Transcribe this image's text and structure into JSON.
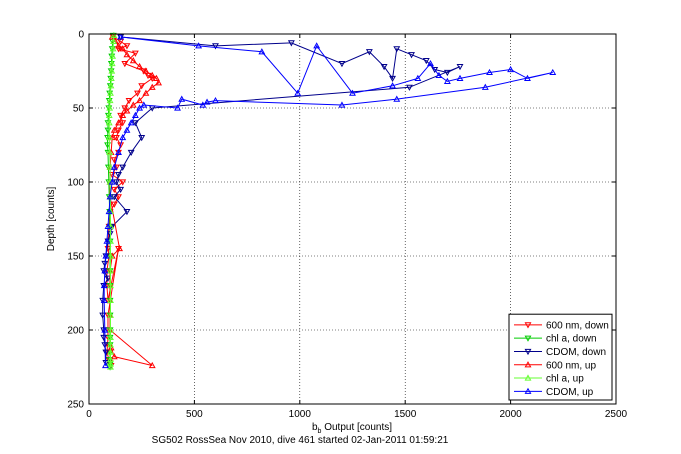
{
  "chart_data": {
    "type": "line",
    "xlabel": "b",
    "xlabel_sub": "b",
    "xlabel_rest": " Output [counts]",
    "ylabel": "Depth [counts]",
    "caption": "SG502 RossSea Nov 2010, dive 461 started 02-Jan-2011 01:59:21",
    "xlim": [
      0,
      2500
    ],
    "ylim": [
      0,
      250
    ],
    "y_reversed": true,
    "grid": true,
    "legend_position": "bottom-right",
    "x_ticks": [
      "0",
      "500",
      "1000",
      "1500",
      "2000",
      "2500"
    ],
    "y_ticks": [
      "0",
      "50",
      "100",
      "150",
      "200",
      "250"
    ],
    "series": [
      {
        "name": "600 nm, down",
        "color": "#ff0000",
        "marker": "triangle-down",
        "x": [
          115,
          150,
          180,
          140,
          220,
          170,
          260,
          280,
          300,
          250,
          230,
          190,
          170,
          150,
          160,
          140,
          130,
          150,
          140,
          120,
          130,
          110,
          160,
          120,
          140,
          120,
          100,
          95,
          90,
          90,
          95,
          85,
          85,
          90,
          140,
          90,
          90,
          90,
          88,
          85,
          95,
          100,
          105
        ],
        "y": [
          2,
          5,
          8,
          10,
          13,
          20,
          25,
          28,
          30,
          35,
          40,
          45,
          50,
          55,
          60,
          65,
          70,
          75,
          80,
          85,
          90,
          95,
          100,
          105,
          110,
          115,
          120,
          130,
          140,
          145,
          150,
          160,
          170,
          180,
          145,
          190,
          200,
          205,
          210,
          215,
          220,
          222,
          224
        ]
      },
      {
        "name": "chl a, down",
        "color": "#00cc00",
        "marker": "triangle-down",
        "x": [
          115,
          112,
          110,
          108,
          106,
          105,
          103,
          101,
          98,
          96,
          94,
          92,
          90,
          90,
          88,
          88,
          90,
          92,
          94,
          96,
          98,
          100,
          100,
          100,
          100,
          100,
          100,
          100,
          100,
          100,
          100,
          100,
          100,
          100,
          100
        ],
        "y": [
          1,
          5,
          10,
          15,
          20,
          25,
          30,
          35,
          40,
          45,
          50,
          55,
          60,
          65,
          70,
          75,
          80,
          90,
          100,
          110,
          120,
          130,
          140,
          150,
          160,
          170,
          180,
          190,
          200,
          205,
          210,
          215,
          220,
          223,
          225
        ]
      },
      {
        "name": "CDOM, down",
        "color": "#00008b",
        "marker": "triangle-down",
        "x": [
          150,
          600,
          960,
          1200,
          1330,
          1400,
          1440,
          1460,
          1530,
          1600,
          1640,
          1700,
          1760,
          1520,
          300,
          220,
          250,
          200,
          160,
          140,
          130,
          150,
          120,
          180,
          110,
          100,
          90,
          80,
          75,
          70,
          90,
          70,
          65,
          65,
          70,
          70,
          75,
          80,
          80
        ],
        "y": [
          2,
          8,
          6,
          20,
          12,
          22,
          30,
          10,
          14,
          18,
          24,
          26,
          22,
          36,
          50,
          60,
          70,
          80,
          90,
          95,
          100,
          105,
          110,
          120,
          130,
          135,
          140,
          150,
          155,
          160,
          165,
          170,
          180,
          190,
          200,
          205,
          210,
          215,
          222
        ]
      },
      {
        "name": "600 nm, up",
        "color": "#ff0000",
        "marker": "triangle-up",
        "x": [
          110,
          125,
          140,
          160,
          180,
          210,
          240,
          270,
          300,
          320,
          330,
          300,
          270,
          240,
          210,
          180,
          160,
          140,
          120,
          110,
          105,
          100,
          100,
          100,
          145,
          110,
          100,
          100,
          100,
          100,
          100,
          300,
          120,
          105
        ],
        "y": [
          2,
          5,
          8,
          10,
          14,
          18,
          22,
          25,
          28,
          30,
          33,
          36,
          40,
          45,
          48,
          52,
          55,
          60,
          65,
          70,
          80,
          90,
          100,
          110,
          145,
          150,
          160,
          170,
          180,
          190,
          200,
          224,
          218,
          212
        ]
      },
      {
        "name": "chl a, up",
        "color": "#66ff33",
        "marker": "triangle-up",
        "x": [
          118,
          116,
          114,
          112,
          110,
          108,
          106,
          104,
          102,
          100,
          98,
          96,
          96,
          96,
          98,
          100,
          100,
          102,
          102,
          102,
          102,
          102,
          102,
          102,
          102,
          102,
          102,
          102,
          102,
          102,
          102,
          102,
          102
        ],
        "y": [
          1,
          5,
          10,
          15,
          20,
          25,
          30,
          35,
          40,
          45,
          50,
          55,
          60,
          70,
          80,
          90,
          100,
          110,
          120,
          130,
          140,
          150,
          160,
          170,
          180,
          190,
          200,
          205,
          210,
          215,
          220,
          223,
          225
        ]
      },
      {
        "name": "CDOM, up",
        "color": "#0000ff",
        "marker": "triangle-up",
        "x": [
          150,
          520,
          820,
          990,
          1080,
          1250,
          1440,
          1560,
          1620,
          1660,
          1700,
          1760,
          1900,
          2000,
          2080,
          2200,
          1880,
          1460,
          1200,
          600,
          560,
          540,
          440,
          420,
          260,
          240,
          220,
          200,
          180,
          160,
          140,
          120,
          110,
          100,
          95,
          90,
          85,
          80,
          75,
          72,
          72,
          75,
          78
        ],
        "y": [
          2,
          8,
          12,
          40,
          8,
          40,
          35,
          30,
          20,
          28,
          32,
          30,
          26,
          24,
          30,
          26,
          36,
          44,
          48,
          45,
          46,
          48,
          44,
          50,
          48,
          50,
          55,
          60,
          65,
          70,
          80,
          90,
          100,
          110,
          120,
          130,
          140,
          150,
          160,
          170,
          180,
          200,
          224
        ]
      }
    ]
  }
}
